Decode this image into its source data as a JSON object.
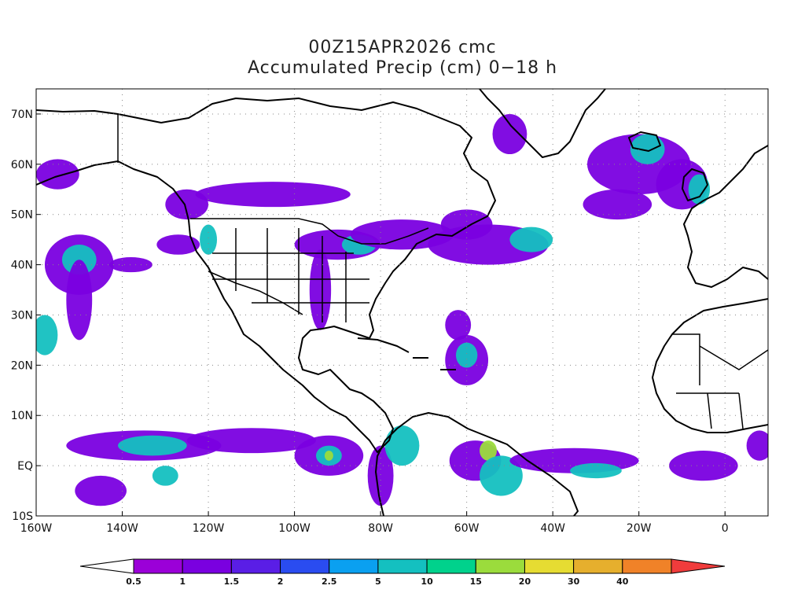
{
  "title": {
    "line1": "00Z15APR2026 cmc",
    "line2": "Accumulated Precip (cm) 0−18 h"
  },
  "map": {
    "projection": "cylindrical-equidistant",
    "lon_range": [
      -160,
      10
    ],
    "lat_range": [
      -10,
      75
    ],
    "lat_ticks": [
      {
        "value": 70,
        "label": "70N"
      },
      {
        "value": 60,
        "label": "60N"
      },
      {
        "value": 50,
        "label": "50N"
      },
      {
        "value": 40,
        "label": "40N"
      },
      {
        "value": 30,
        "label": "30N"
      },
      {
        "value": 20,
        "label": "20N"
      },
      {
        "value": 10,
        "label": "10N"
      },
      {
        "value": 0,
        "label": "EQ"
      },
      {
        "value": -10,
        "label": "10S"
      }
    ],
    "lon_ticks": [
      {
        "value": -160,
        "label": "160W"
      },
      {
        "value": -140,
        "label": "140W"
      },
      {
        "value": -120,
        "label": "120W"
      },
      {
        "value": -100,
        "label": "100W"
      },
      {
        "value": -80,
        "label": "80W"
      },
      {
        "value": -60,
        "label": "60W"
      },
      {
        "value": -40,
        "label": "40W"
      },
      {
        "value": -20,
        "label": "20W"
      },
      {
        "value": 0,
        "label": "0"
      }
    ],
    "grid": "dotted"
  },
  "colorbar": {
    "levels": [
      "0.5",
      "1",
      "1.5",
      "2",
      "2.5",
      "5",
      "10",
      "15",
      "20",
      "30",
      "40"
    ],
    "colors": [
      "#ffffff",
      "#9b00d8",
      "#7a00e0",
      "#5a1ee6",
      "#2a4cf0",
      "#0aa0f0",
      "#14c0c0",
      "#00d28c",
      "#9bdc3c",
      "#e6dc32",
      "#e6af2d",
      "#f08228",
      "#f03c3c"
    ]
  },
  "precip_areas": [
    {
      "lon": -150,
      "lat": 40,
      "rx": 8,
      "ry": 6,
      "level": 1
    },
    {
      "lon": -150,
      "lat": 41,
      "rx": 4,
      "ry": 3,
      "level": 5
    },
    {
      "lon": -150,
      "lat": 33,
      "rx": 3,
      "ry": 8,
      "level": 1
    },
    {
      "lon": -158,
      "lat": 26,
      "rx": 3,
      "ry": 4,
      "level": 5
    },
    {
      "lon": -155,
      "lat": 58,
      "rx": 5,
      "ry": 3,
      "level": 1
    },
    {
      "lon": -138,
      "lat": 40,
      "rx": 5,
      "ry": 1.5,
      "level": 1
    },
    {
      "lon": -127,
      "lat": 44,
      "rx": 5,
      "ry": 2,
      "level": 1
    },
    {
      "lon": -125,
      "lat": 52,
      "rx": 5,
      "ry": 3,
      "level": 1
    },
    {
      "lon": -120,
      "lat": 45,
      "rx": 2,
      "ry": 3,
      "level": 5
    },
    {
      "lon": -105,
      "lat": 54,
      "rx": 18,
      "ry": 2.5,
      "level": 1
    },
    {
      "lon": -90,
      "lat": 44,
      "rx": 10,
      "ry": 3,
      "level": 1
    },
    {
      "lon": -85,
      "lat": 44,
      "rx": 4,
      "ry": 2,
      "level": 5
    },
    {
      "lon": -75,
      "lat": 46,
      "rx": 12,
      "ry": 3,
      "level": 1
    },
    {
      "lon": -94,
      "lat": 35,
      "rx": 2.5,
      "ry": 8,
      "level": 1
    },
    {
      "lon": -55,
      "lat": 44,
      "rx": 14,
      "ry": 4,
      "level": 1
    },
    {
      "lon": -45,
      "lat": 45,
      "rx": 5,
      "ry": 2.5,
      "level": 5
    },
    {
      "lon": -60,
      "lat": 48,
      "rx": 6,
      "ry": 3,
      "level": 1
    },
    {
      "lon": -60,
      "lat": 21,
      "rx": 5,
      "ry": 5,
      "level": 1
    },
    {
      "lon": -60,
      "lat": 22,
      "rx": 2.5,
      "ry": 2.5,
      "level": 5
    },
    {
      "lon": -62,
      "lat": 28,
      "rx": 3,
      "ry": 3,
      "level": 1
    },
    {
      "lon": -50,
      "lat": 66,
      "rx": 4,
      "ry": 4,
      "level": 1
    },
    {
      "lon": -20,
      "lat": 60,
      "rx": 12,
      "ry": 6,
      "level": 1
    },
    {
      "lon": -18,
      "lat": 63,
      "rx": 4,
      "ry": 3,
      "level": 5
    },
    {
      "lon": -10,
      "lat": 56,
      "rx": 6,
      "ry": 5,
      "level": 1
    },
    {
      "lon": -6,
      "lat": 55,
      "rx": 2.5,
      "ry": 3,
      "level": 5
    },
    {
      "lon": -25,
      "lat": 52,
      "rx": 8,
      "ry": 3,
      "level": 1
    },
    {
      "lon": -135,
      "lat": 4,
      "rx": 18,
      "ry": 3,
      "level": 1
    },
    {
      "lon": -133,
      "lat": 4,
      "rx": 8,
      "ry": 2,
      "level": 5
    },
    {
      "lon": -110,
      "lat": 5,
      "rx": 15,
      "ry": 2.5,
      "level": 1
    },
    {
      "lon": -92,
      "lat": 2,
      "rx": 8,
      "ry": 4,
      "level": 1
    },
    {
      "lon": -92,
      "lat": 2,
      "rx": 3,
      "ry": 2,
      "level": 5
    },
    {
      "lon": -92,
      "lat": 2,
      "rx": 1,
      "ry": 1,
      "level": 15
    },
    {
      "lon": -145,
      "lat": -5,
      "rx": 6,
      "ry": 3,
      "level": 1
    },
    {
      "lon": -130,
      "lat": -2,
      "rx": 3,
      "ry": 2,
      "level": 5
    },
    {
      "lon": -80,
      "lat": -2,
      "rx": 3,
      "ry": 6,
      "level": 1
    },
    {
      "lon": -75,
      "lat": 4,
      "rx": 4,
      "ry": 4,
      "level": 5
    },
    {
      "lon": -58,
      "lat": 1,
      "rx": 6,
      "ry": 4,
      "level": 1
    },
    {
      "lon": -55,
      "lat": 3,
      "rx": 2,
      "ry": 2,
      "level": 15
    },
    {
      "lon": -52,
      "lat": -2,
      "rx": 5,
      "ry": 4,
      "level": 5
    },
    {
      "lon": -35,
      "lat": 1,
      "rx": 15,
      "ry": 2.5,
      "level": 1
    },
    {
      "lon": -30,
      "lat": -1,
      "rx": 6,
      "ry": 1.5,
      "level": 5
    },
    {
      "lon": -5,
      "lat": 0,
      "rx": 8,
      "ry": 3,
      "level": 1
    },
    {
      "lon": 8,
      "lat": 4,
      "rx": 3,
      "ry": 3,
      "level": 1
    }
  ]
}
